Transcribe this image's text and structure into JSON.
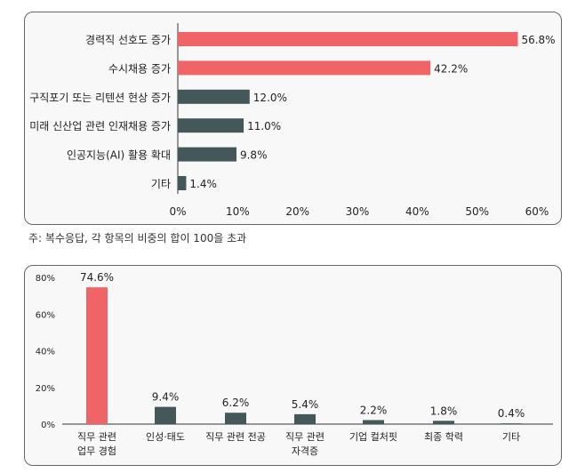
{
  "colors": {
    "highlight": "#ef6567",
    "dark": "#44585a",
    "axis": "#333333",
    "grid": "#d9d9d9"
  },
  "chart_data": [
    {
      "type": "bar",
      "orientation": "horizontal",
      "categories": [
        "경력직 선호도 증가",
        "수시채용 증가",
        "구직포기 또는 리텐션 현상 증가",
        "미래 신산업 관련 인재채용 증가",
        "인공지능(AI) 활용 확대",
        "기타"
      ],
      "values": [
        56.8,
        42.2,
        12.0,
        11.0,
        9.8,
        1.4
      ],
      "value_labels": [
        "56.8%",
        "42.2%",
        "12.0%",
        "11.0%",
        "9.8%",
        "1.4%"
      ],
      "highlighted": [
        true,
        true,
        false,
        false,
        false,
        false
      ],
      "xlim": [
        0,
        60
      ],
      "x_ticks": [
        "0%",
        "10%",
        "20%",
        "30%",
        "40%",
        "50%",
        "60%"
      ],
      "grid": false,
      "title": "",
      "xlabel": "",
      "ylabel": ""
    },
    {
      "type": "bar",
      "orientation": "vertical",
      "categories": [
        [
          "직무 관련",
          "업무 경험"
        ],
        [
          "인성·태도"
        ],
        [
          "직무 관련 전공"
        ],
        [
          "직무 관련",
          "자격증"
        ],
        [
          "기업 컬처핏"
        ],
        [
          "최종 학력"
        ],
        [
          "기타"
        ]
      ],
      "values": [
        74.6,
        9.4,
        6.2,
        5.4,
        2.2,
        1.8,
        0.4
      ],
      "value_labels": [
        "74.6%",
        "9.4%",
        "6.2%",
        "5.4%",
        "2.2%",
        "1.8%",
        "0.4%"
      ],
      "highlighted": [
        true,
        false,
        false,
        false,
        false,
        false,
        false
      ],
      "ylim": [
        0,
        80
      ],
      "y_ticks": [
        "0%",
        "20%",
        "40%",
        "60%",
        "80%"
      ],
      "grid": false,
      "title": "",
      "xlabel": "",
      "ylabel": ""
    }
  ],
  "note": "주: 복수응답, 각 항목의 비중의 합이 100을 초과"
}
